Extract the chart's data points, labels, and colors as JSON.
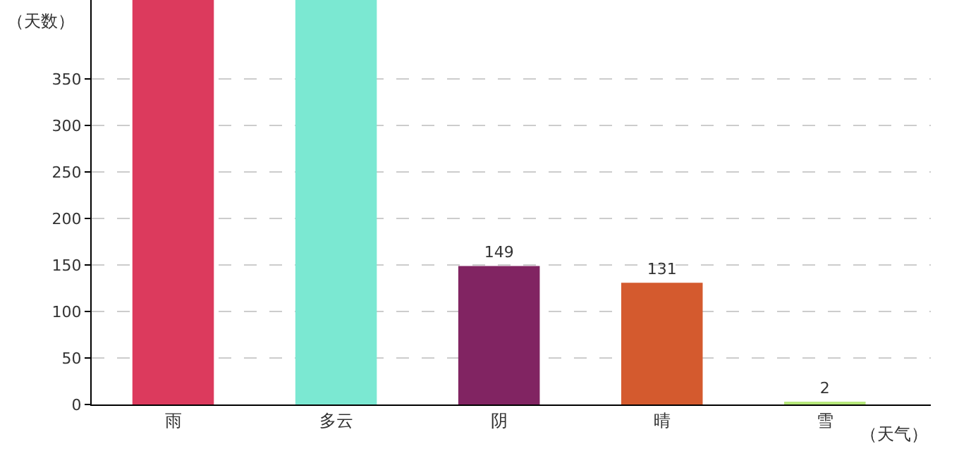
{
  "chart_data": {
    "type": "bar",
    "xlabel": "（天气）",
    "ylabel": "（天数）",
    "categories": [
      "雨",
      "多云",
      "阴",
      "晴",
      "雪"
    ],
    "values": [
      435,
      435,
      149,
      131,
      2
    ],
    "colors": [
      "#dc3a5d",
      "#7be8d2",
      "#812462",
      "#d45a2e",
      "#b6e87a"
    ],
    "value_labels": [
      null,
      null,
      "149",
      "131",
      "2"
    ],
    "ylim": [
      0,
      435
    ],
    "yticks": [
      0,
      50,
      100,
      150,
      200,
      250,
      300,
      350
    ],
    "grid": "y",
    "legend": false
  }
}
